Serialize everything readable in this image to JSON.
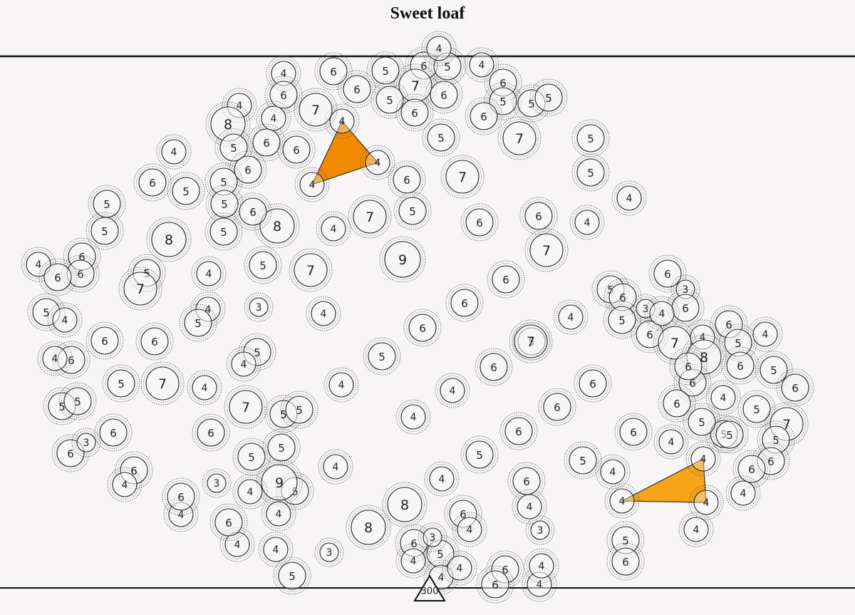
{
  "title": "Sweet loaf",
  "marker": {
    "label": "300"
  },
  "colors": {
    "background": "#f7f5f5",
    "line": "#111111",
    "ring": "#333333",
    "fill_dark": "#f18a00",
    "fill_light": "#f7a418"
  },
  "shapes": [
    {
      "name": "triangle-top",
      "color": "#f18a00",
      "pieces": [
        "A",
        "B",
        "C"
      ]
    },
    {
      "name": "triangle-right",
      "color": "#f7a418",
      "pieces": [
        "D",
        "E",
        "F"
      ]
    }
  ],
  "pieces": [
    {
      "id": "A",
      "v": 4
    },
    {
      "id": "B",
      "v": 4
    },
    {
      "id": "C",
      "v": 4
    },
    {
      "id": "D",
      "v": 4
    },
    {
      "id": "E",
      "v": 4
    },
    {
      "id": "F",
      "v": 4
    },
    {
      "v": 4
    },
    {
      "v": 6
    },
    {
      "v": 5
    },
    {
      "v": 6
    },
    {
      "v": 5
    },
    {
      "v": 7
    },
    {
      "v": 6
    },
    {
      "v": 6
    },
    {
      "v": 4
    },
    {
      "v": 4
    },
    {
      "v": 6
    },
    {
      "v": 5
    },
    {
      "v": 5
    },
    {
      "v": 4
    },
    {
      "v": 6
    },
    {
      "v": 4
    },
    {
      "v": 7
    },
    {
      "v": 8
    },
    {
      "v": 6
    },
    {
      "v": 6
    },
    {
      "v": 5
    },
    {
      "v": 5
    },
    {
      "v": 6
    },
    {
      "v": 7
    },
    {
      "v": 4
    },
    {
      "v": 6
    },
    {
      "v": 5
    },
    {
      "v": 5
    },
    {
      "v": 6
    },
    {
      "v": 7
    },
    {
      "v": 5
    },
    {
      "v": 4
    },
    {
      "v": 5
    },
    {
      "v": 5
    },
    {
      "v": 5
    },
    {
      "v": 6
    },
    {
      "v": 8
    },
    {
      "v": 7
    },
    {
      "v": 6
    },
    {
      "v": 5
    },
    {
      "v": 5
    },
    {
      "v": 4
    },
    {
      "v": 5
    },
    {
      "v": 8
    },
    {
      "v": 9
    },
    {
      "v": 6
    },
    {
      "v": 6
    },
    {
      "v": 4
    },
    {
      "v": 6
    },
    {
      "v": 5
    },
    {
      "v": 5
    },
    {
      "v": 6
    },
    {
      "v": 7
    },
    {
      "v": 6
    },
    {
      "v": 6
    },
    {
      "v": 3
    },
    {
      "v": 4
    },
    {
      "v": 5
    },
    {
      "v": 4
    },
    {
      "v": 6
    },
    {
      "v": 5
    },
    {
      "v": 5
    },
    {
      "v": 7
    },
    {
      "v": 6
    },
    {
      "v": 4
    },
    {
      "v": 6
    },
    {
      "v": 7
    },
    {
      "v": 5
    },
    {
      "v": 6
    },
    {
      "v": 4
    },
    {
      "v": 3
    },
    {
      "v": 5
    },
    {
      "v": 5
    },
    {
      "v": 6
    },
    {
      "v": 3
    },
    {
      "v": 4
    },
    {
      "v": 6
    },
    {
      "v": 4
    },
    {
      "v": 4
    },
    {
      "v": 7
    },
    {
      "v": 5
    },
    {
      "v": 4
    },
    {
      "v": 5
    },
    {
      "v": 6
    },
    {
      "v": 4
    },
    {
      "v": 6
    },
    {
      "v": 5
    },
    {
      "v": 6
    },
    {
      "v": 8
    },
    {
      "v": 6
    },
    {
      "v": 5
    },
    {
      "v": 5
    },
    {
      "v": 6
    },
    {
      "v": 6
    },
    {
      "v": 6
    },
    {
      "v": 7
    },
    {
      "v": 6
    },
    {
      "v": 6
    },
    {
      "v": 6
    },
    {
      "v": 4
    },
    {
      "v": 5
    },
    {
      "v": 4
    },
    {
      "v": 7
    },
    {
      "v": 4
    },
    {
      "v": 6
    },
    {
      "v": 6
    },
    {
      "v": 4
    },
    {
      "v": 4
    },
    {
      "v": 5
    },
    {
      "v": 5
    },
    {
      "v": 5
    },
    {
      "v": 7
    },
    {
      "v": 6
    },
    {
      "v": 5
    },
    {
      "v": 4
    },
    {
      "v": 5
    },
    {
      "v": 6
    },
    {
      "v": 7
    },
    {
      "v": 5
    },
    {
      "v": 5
    },
    {
      "v": 6
    },
    {
      "v": 5
    },
    {
      "v": 3
    },
    {
      "v": 6
    },
    {
      "v": 6
    },
    {
      "v": 6
    },
    {
      "v": 4
    },
    {
      "v": 4
    },
    {
      "v": 5
    },
    {
      "v": 6
    },
    {
      "v": 6
    },
    {
      "v": 4
    },
    {
      "v": 5
    },
    {
      "v": 5
    },
    {
      "v": 5
    },
    {
      "v": 6
    },
    {
      "v": 9
    },
    {
      "v": 5
    },
    {
      "v": 5
    },
    {
      "v": 4
    },
    {
      "v": 4
    },
    {
      "v": 4
    },
    {
      "v": 4
    },
    {
      "v": 6
    },
    {
      "v": 4
    },
    {
      "v": 3
    },
    {
      "v": 3
    },
    {
      "v": 3
    },
    {
      "v": 4
    },
    {
      "v": 8
    },
    {
      "v": 4
    },
    {
      "v": 4
    },
    {
      "v": 5
    },
    {
      "v": 6
    },
    {
      "v": 8
    },
    {
      "v": 6
    },
    {
      "v": 4
    },
    {
      "v": 4
    },
    {
      "v": 5
    },
    {
      "v": 4
    },
    {
      "v": 6
    },
    {
      "v": 4
    },
    {
      "v": 3
    },
    {
      "v": 6
    },
    {
      "v": 6
    },
    {
      "v": 5
    },
    {
      "v": 6
    },
    {
      "v": 4
    },
    {
      "v": 4
    },
    {
      "v": 6
    },
    {
      "v": 4
    },
    {
      "v": 4
    },
    {
      "v": 4
    },
    {
      "v": 3
    },
    {
      "v": 7
    },
    {
      "v": 6
    },
    {
      "v": 4
    }
  ]
}
